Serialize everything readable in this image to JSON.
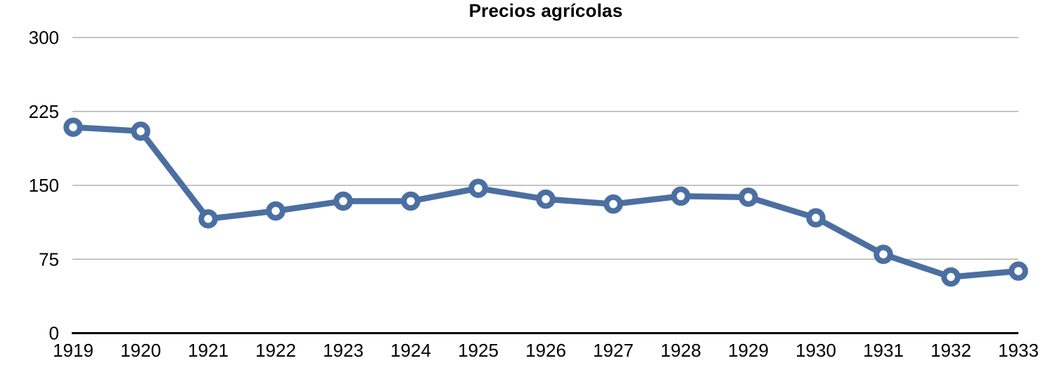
{
  "title": "Precios agrícolas",
  "chart_data": {
    "type": "line",
    "title": "Precios agrícolas",
    "categories": [
      "1919",
      "1920",
      "1921",
      "1922",
      "1923",
      "1924",
      "1925",
      "1926",
      "1927",
      "1928",
      "1929",
      "1930",
      "1931",
      "1932",
      "1933"
    ],
    "series": [
      {
        "name": "Precios agrícolas",
        "values": [
          209,
          205,
          116,
          124,
          134,
          134,
          147,
          136,
          131,
          139,
          138,
          117,
          80,
          57,
          63
        ]
      }
    ],
    "xlabel": "",
    "ylabel": "",
    "ylim": [
      0,
      300
    ],
    "yticks": [
      0,
      75,
      150,
      225,
      300
    ],
    "grid": true,
    "legend_position": "none",
    "marker": "open-circle",
    "colors": {
      "line": "#4b6fa1",
      "marker_fill": "#ffffff",
      "grid": "#b0b0b0",
      "axis": "#000000",
      "text": "#000000",
      "background": "#ffffff"
    }
  }
}
